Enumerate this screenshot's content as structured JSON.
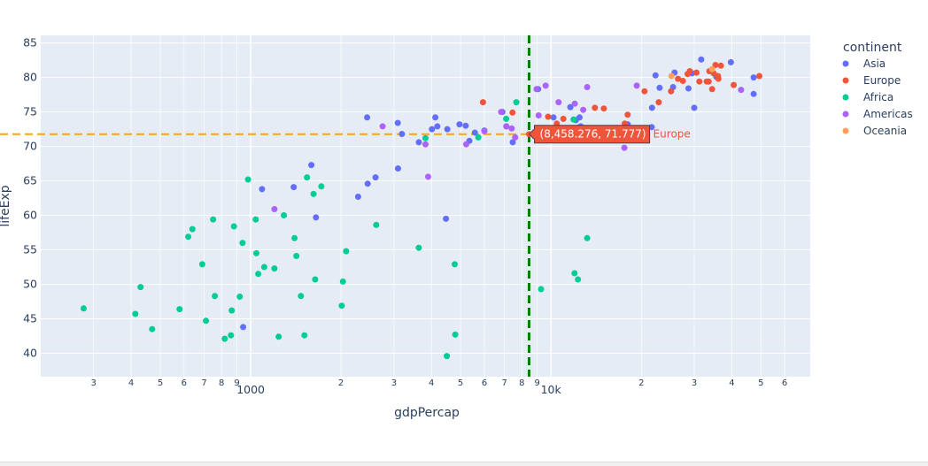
{
  "chart_data": {
    "type": "scatter",
    "title": "",
    "xlabel": "gdpPercap",
    "ylabel": "lifeExp",
    "x_scale": "log",
    "xlim": [
      200,
      73000
    ],
    "ylim": [
      36.6,
      86.1
    ],
    "grid": true,
    "legend_title": "continent",
    "legend_position": "right",
    "y_ticks": [
      40,
      45,
      50,
      55,
      60,
      65,
      70,
      75,
      80,
      85
    ],
    "x_major_ticks": [
      {
        "value": 1000,
        "label": "1000"
      },
      {
        "value": 10000,
        "label": "10k"
      }
    ],
    "x_minor_ticks": [
      {
        "value": 300,
        "label": "3"
      },
      {
        "value": 400,
        "label": "4"
      },
      {
        "value": 500,
        "label": "5"
      },
      {
        "value": 600,
        "label": "6"
      },
      {
        "value": 700,
        "label": "7"
      },
      {
        "value": 800,
        "label": "8"
      },
      {
        "value": 900,
        "label": "9"
      },
      {
        "value": 2000,
        "label": "2"
      },
      {
        "value": 3000,
        "label": "3"
      },
      {
        "value": 4000,
        "label": "4"
      },
      {
        "value": 5000,
        "label": "5"
      },
      {
        "value": 6000,
        "label": "6"
      },
      {
        "value": 7000,
        "label": "7"
      },
      {
        "value": 8000,
        "label": "8"
      },
      {
        "value": 9000,
        "label": "9"
      },
      {
        "value": 20000,
        "label": "2"
      },
      {
        "value": 30000,
        "label": "3"
      },
      {
        "value": 40000,
        "label": "4"
      },
      {
        "value": 50000,
        "label": "5"
      },
      {
        "value": 60000,
        "label": "6"
      }
    ],
    "reference_lines": [
      {
        "orientation": "vertical",
        "value": 8458.276,
        "color": "#008000",
        "style": "dash"
      },
      {
        "orientation": "horizontal",
        "value": 71.777,
        "color": "#FFA500",
        "style": "dash"
      }
    ],
    "hover": {
      "x": 8458.276,
      "y": 71.777,
      "text": "(8,458.276, 71.777)",
      "series": "Europe",
      "color": "#EF553B"
    },
    "series": [
      {
        "name": "Asia",
        "color": "#636EFA",
        "points": [
          [
            3632,
            70.6
          ],
          [
            4471,
            59.5
          ],
          [
            7458,
            70.6
          ],
          [
            2452,
            64.6
          ],
          [
            1391,
            64.1
          ],
          [
            2605,
            65.5
          ],
          [
            944,
            43.8
          ],
          [
            5200,
            73
          ],
          [
            4120,
            74.2
          ],
          [
            3090,
            73.4
          ],
          [
            3095,
            66.8
          ],
          [
            4015,
            72.5
          ],
          [
            2442,
            74.2
          ],
          [
            1091,
            63.8
          ],
          [
            1593,
            67.3
          ],
          [
            3190,
            71.8
          ],
          [
            5350,
            70.8
          ],
          [
            6890,
            75
          ],
          [
            12570,
            72.9
          ],
          [
            10200,
            74.2
          ],
          [
            12100,
            73.8
          ],
          [
            12450,
            74.2
          ],
          [
            7100,
            72.9
          ],
          [
            2280,
            62.7
          ],
          [
            4960,
            73.2
          ],
          [
            1650,
            59.7
          ],
          [
            4520,
            72.5
          ],
          [
            25500,
            78.6
          ],
          [
            28700,
            78.4
          ],
          [
            31650,
            82.6
          ],
          [
            30000,
            75.6
          ],
          [
            39720,
            82.2
          ],
          [
            47300,
            77.6
          ],
          [
            47300,
            80
          ],
          [
            22300,
            80.3
          ],
          [
            35500,
            80.1
          ],
          [
            23000,
            78.5
          ],
          [
            25800,
            80.7
          ],
          [
            29500,
            80.6
          ],
          [
            21700,
            75.6
          ],
          [
            18000,
            73.2
          ],
          [
            21650,
            72.8
          ],
          [
            12450,
            72.8
          ],
          [
            11600,
            75.7
          ],
          [
            4185,
            72.9
          ],
          [
            9065,
            78.3
          ],
          [
            6000,
            72.3
          ],
          [
            5580,
            72
          ]
        ]
      },
      {
        "name": "Europe",
        "color": "#EF553B",
        "points": [
          [
            5937,
            76.4
          ],
          [
            7446,
            74.9
          ],
          [
            8458.276,
            71.777
          ],
          [
            9786,
            74.3
          ],
          [
            10461,
            73.3
          ],
          [
            11000,
            74
          ],
          [
            14000,
            75.6
          ],
          [
            15000,
            75.5
          ],
          [
            17600,
            73.3
          ],
          [
            18000,
            74.6
          ],
          [
            20500,
            78
          ],
          [
            22850,
            76.4
          ],
          [
            25100,
            78
          ],
          [
            27500,
            79.5
          ],
          [
            28500,
            80.5
          ],
          [
            29000,
            80.9
          ],
          [
            30500,
            80.7
          ],
          [
            31200,
            79.4
          ],
          [
            33000,
            79.4
          ],
          [
            33500,
            79.4
          ],
          [
            33700,
            80.9
          ],
          [
            34800,
            80.6
          ],
          [
            35300,
            81.8
          ],
          [
            36100,
            79.8
          ],
          [
            36800,
            81.7
          ],
          [
            40600,
            78.9
          ],
          [
            49400,
            80.2
          ],
          [
            34400,
            78.3
          ],
          [
            36000,
            80.2
          ],
          [
            26500,
            79.8
          ]
        ]
      },
      {
        "name": "Africa",
        "color": "#00CC96",
        "points": [
          [
            278,
            46.5
          ],
          [
            413,
            45.7
          ],
          [
            430,
            49.6
          ],
          [
            470,
            43.5
          ],
          [
            580,
            46.4
          ],
          [
            620,
            56.9
          ],
          [
            640,
            58
          ],
          [
            690,
            52.9
          ],
          [
            710,
            44.7
          ],
          [
            750,
            59.4
          ],
          [
            760,
            48.3
          ],
          [
            820,
            42.1
          ],
          [
            860,
            42.6
          ],
          [
            865,
            46.2
          ],
          [
            880,
            58.4
          ],
          [
            920,
            48.2
          ],
          [
            940,
            56
          ],
          [
            980,
            65.2
          ],
          [
            1040,
            59.4
          ],
          [
            1045,
            54.5
          ],
          [
            1060,
            51.5
          ],
          [
            1110,
            52.5
          ],
          [
            1200,
            52.3
          ],
          [
            1240,
            42.4
          ],
          [
            1290,
            60
          ],
          [
            1400,
            56.7
          ],
          [
            1420,
            54.1
          ],
          [
            1470,
            48.3
          ],
          [
            1510,
            42.6
          ],
          [
            1540,
            65.5
          ],
          [
            1620,
            63.1
          ],
          [
            1640,
            50.7
          ],
          [
            1720,
            64.2
          ],
          [
            2010,
            46.9
          ],
          [
            2030,
            50.4
          ],
          [
            2080,
            54.8
          ],
          [
            2620,
            58.6
          ],
          [
            3630,
            55.3
          ],
          [
            3820,
            71.2
          ],
          [
            4500,
            39.6
          ],
          [
            4780,
            52.9
          ],
          [
            4800,
            42.7
          ],
          [
            5730,
            71.3
          ],
          [
            7090,
            74
          ],
          [
            7670,
            76.4
          ],
          [
            9270,
            49.3
          ],
          [
            11980,
            51.6
          ],
          [
            12300,
            50.7
          ],
          [
            13200,
            56.7
          ],
          [
            11900,
            73.9
          ]
        ]
      },
      {
        "name": "Americas",
        "color": "#AB63FA",
        "points": [
          [
            1200,
            60.9
          ],
          [
            2750,
            72.9
          ],
          [
            3820,
            70.3
          ],
          [
            3900,
            65.6
          ],
          [
            5220,
            70.3
          ],
          [
            6000,
            72.2
          ],
          [
            6830,
            75
          ],
          [
            7100,
            72.9
          ],
          [
            7400,
            72.6
          ],
          [
            7600,
            71.3
          ],
          [
            8950,
            78.3
          ],
          [
            9100,
            74.5
          ],
          [
            9600,
            78.8
          ],
          [
            10600,
            76.4
          ],
          [
            12000,
            76.2
          ],
          [
            12800,
            75.3
          ],
          [
            13200,
            78.6
          ],
          [
            17550,
            69.8
          ],
          [
            19300,
            78.8
          ],
          [
            42950,
            78.2
          ]
        ]
      },
      {
        "name": "Oceania",
        "color": "#FFA15A",
        "points": [
          [
            25200,
            80.2
          ],
          [
            34400,
            81.2
          ]
        ]
      }
    ]
  }
}
